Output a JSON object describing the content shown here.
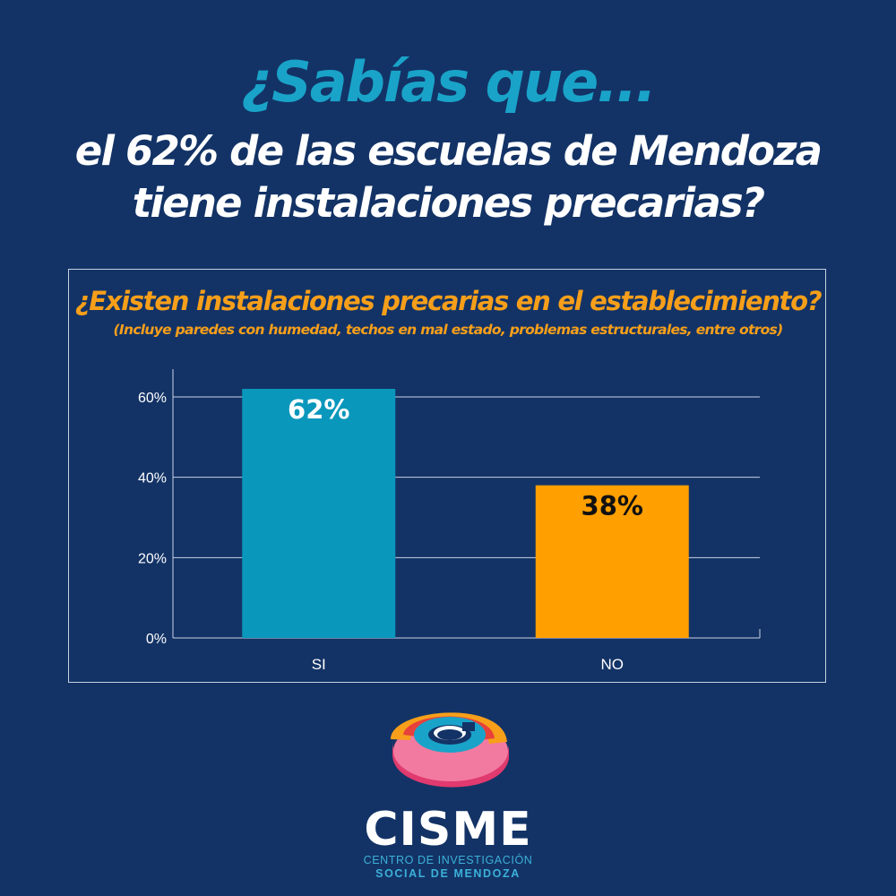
{
  "header": {
    "line1": "¿Sabías que...",
    "line2a": "el 62% de las escuelas de Mendoza",
    "line2b": "tiene instalaciones precarias?"
  },
  "colors": {
    "background": "#133366",
    "accent_blue": "#1aa3c9",
    "accent_orange": "#f79f1a",
    "bar_si": "#0a97bc",
    "bar_no": "#ff9f00"
  },
  "chart_data": {
    "type": "bar",
    "title": "¿Existen instalaciones precarias en el establecimiento?",
    "subtitle": "(Incluye paredes con humedad, techos en mal estado, problemas estructurales, entre otros)",
    "categories": [
      "SI",
      "NO"
    ],
    "values": [
      62,
      38
    ],
    "data_labels": [
      "62%",
      "38%"
    ],
    "ylim": [
      0,
      66
    ],
    "yticks": [
      0,
      20,
      40,
      60
    ],
    "ytick_labels": [
      "0%",
      "20%",
      "40%",
      "60%"
    ],
    "grid": true,
    "xlabel": "",
    "ylabel": ""
  },
  "logo": {
    "name": "CISME",
    "line1": "CENTRO DE INVESTIGACIÓN",
    "line2": "SOCIAL DE MENDOZA"
  }
}
